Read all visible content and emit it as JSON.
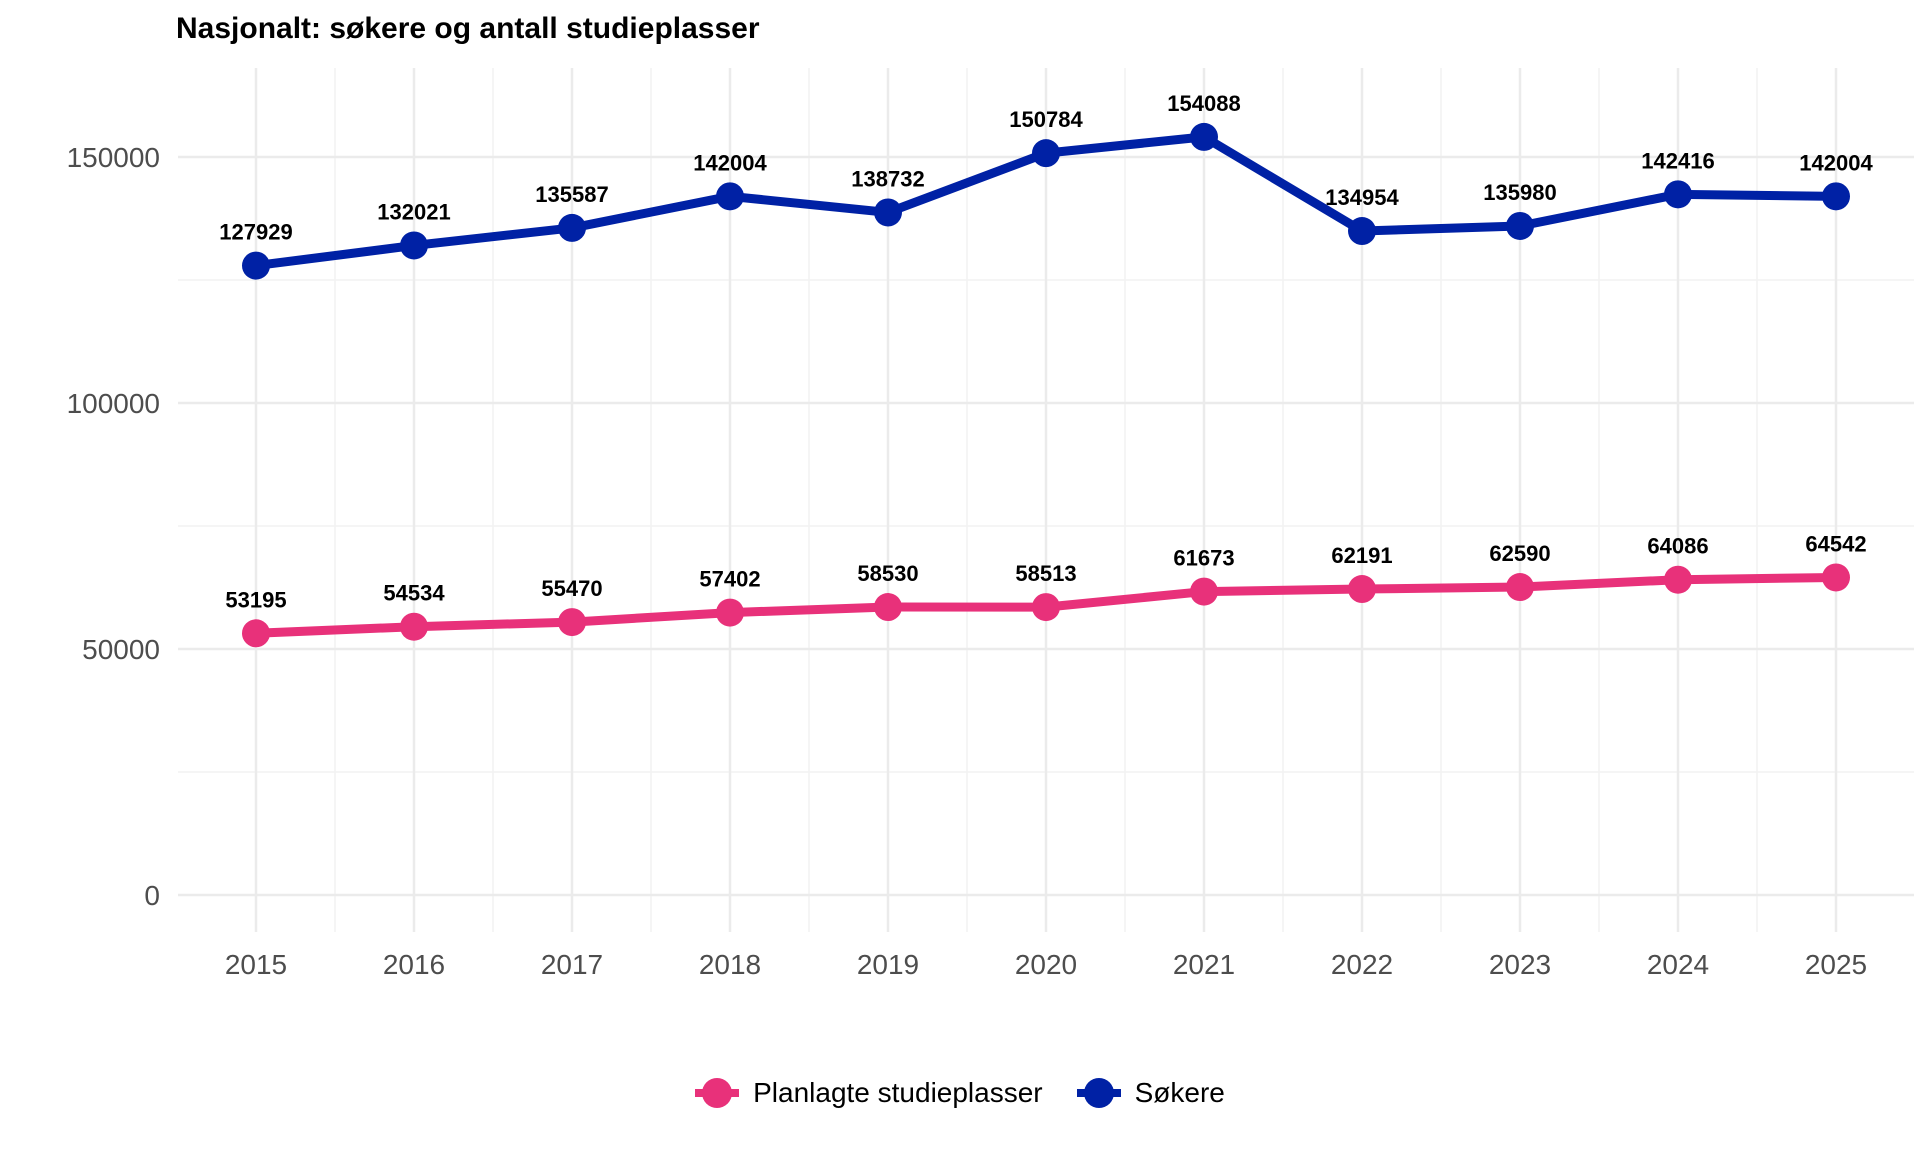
{
  "chart_data": {
    "type": "line",
    "title": "Nasjonalt: søkere og antall studieplasser",
    "xlabel": "",
    "ylabel": "",
    "x": [
      2015,
      2016,
      2017,
      2018,
      2019,
      2020,
      2021,
      2022,
      2023,
      2024,
      2025
    ],
    "ylim": [
      0,
      165000
    ],
    "yticks": [
      0,
      50000,
      100000,
      150000
    ],
    "grid": true,
    "legend_position": "bottom",
    "series": [
      {
        "name": "Søkere",
        "color": "#0021a5",
        "values": [
          127929,
          132021,
          135587,
          142004,
          138732,
          150784,
          154088,
          134954,
          135980,
          142416,
          142004
        ]
      },
      {
        "name": "Planlagte studieplasser",
        "color": "#e8317a",
        "values": [
          53195,
          54534,
          55470,
          57402,
          58530,
          58513,
          61673,
          62191,
          62590,
          64086,
          64542
        ]
      }
    ],
    "legend_order": [
      "Planlagte studieplasser",
      "Søkere"
    ]
  }
}
